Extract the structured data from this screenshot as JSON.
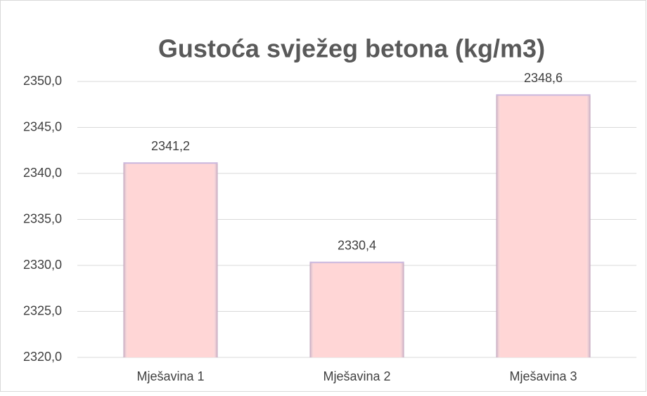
{
  "chart_data": {
    "type": "bar",
    "title": "Gustoća svježeg betona (kg/m3)",
    "categories": [
      "Mješavina 1",
      "Mješavina 2",
      "Mješavina 3"
    ],
    "values": [
      2341.2,
      2330.4,
      2348.6
    ],
    "value_labels": [
      "2341,2",
      "2330,4",
      "2348,6"
    ],
    "color": "#ffd6d6",
    "ylim": [
      2320,
      2350
    ],
    "yticks": [
      {
        "value": 2320,
        "label": "2320,0"
      },
      {
        "value": 2325,
        "label": "2325,0"
      },
      {
        "value": 2330,
        "label": "2330,0"
      },
      {
        "value": 2335,
        "label": "2335,0"
      },
      {
        "value": 2340,
        "label": "2340,0"
      },
      {
        "value": 2345,
        "label": "2345,0"
      },
      {
        "value": 2350,
        "label": "2350,0"
      }
    ],
    "grid": true
  }
}
